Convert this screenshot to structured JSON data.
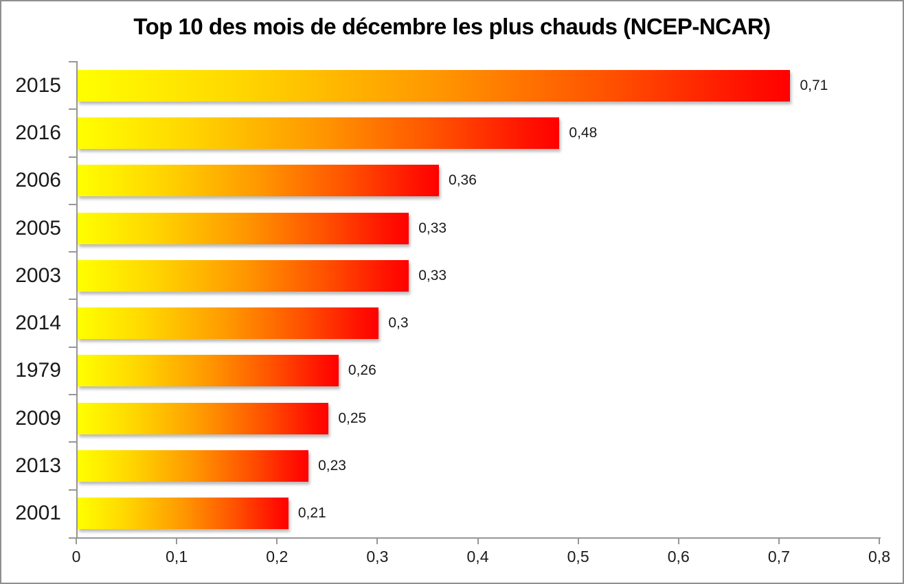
{
  "chart_data": {
    "type": "bar",
    "orientation": "horizontal",
    "title": "Top 10 des mois de décembre les plus chauds (NCEP-NCAR)",
    "categories": [
      "2015",
      "2016",
      "2006",
      "2005",
      "2003",
      "2014",
      "1979",
      "2009",
      "2013",
      "2001"
    ],
    "values": [
      0.71,
      0.48,
      0.36,
      0.33,
      0.33,
      0.3,
      0.26,
      0.25,
      0.23,
      0.21
    ],
    "value_labels": [
      "0,71",
      "0,48",
      "0,36",
      "0,33",
      "0,33",
      "0,3",
      "0,26",
      "0,25",
      "0,23",
      "0,21"
    ],
    "x_tick_labels": [
      "0",
      "0,1",
      "0,2",
      "0,3",
      "0,4",
      "0,5",
      "0,6",
      "0,7",
      "0,8"
    ],
    "xlim": [
      0,
      0.8
    ],
    "xlabel": "",
    "ylabel": "",
    "grid": false,
    "legend": "none",
    "decimal_separator": ",",
    "bar_gradient": [
      "#FFFF00",
      "#FF9800",
      "#FF0000"
    ],
    "axis_color": "#969696",
    "text_color": "#1a1a1a"
  }
}
